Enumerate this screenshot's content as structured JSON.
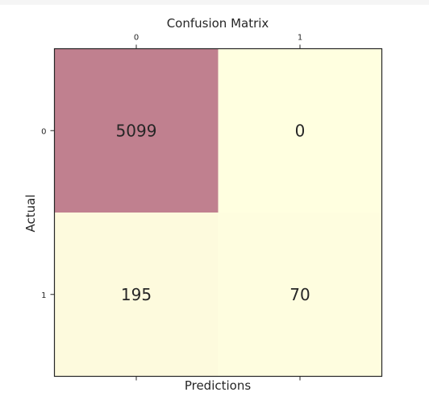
{
  "chart_data": {
    "type": "heatmap",
    "title": "Confusion Matrix",
    "xlabel": "Predictions",
    "ylabel": "Actual",
    "x_categories": [
      "0",
      "1"
    ],
    "y_categories": [
      "0",
      "1"
    ],
    "matrix": [
      [
        5099,
        0
      ],
      [
        195,
        70
      ]
    ],
    "matrix_labels": [
      [
        "5099",
        "0"
      ],
      [
        "195",
        "70"
      ]
    ],
    "colormap": {
      "low": "#ffffe0",
      "high": "#c0808f"
    },
    "grid": false,
    "xticks_position": "top"
  }
}
